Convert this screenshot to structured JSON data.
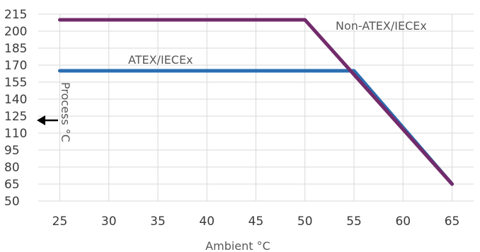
{
  "chart_data": {
    "type": "line",
    "xlabel": "Ambient °C",
    "ylabel": "Process °C",
    "x_ticks": [
      25,
      30,
      35,
      40,
      45,
      50,
      55,
      60,
      65
    ],
    "y_ticks": [
      50,
      65,
      80,
      95,
      110,
      125,
      140,
      155,
      170,
      185,
      200,
      215
    ],
    "xlim": [
      22.8,
      67.2
    ],
    "ylim": [
      50,
      215
    ],
    "grid": "both",
    "legend": "inline labels",
    "series": [
      {
        "name": "Non-ATEX/IECEx",
        "color": "#722b6b",
        "x": [
          25,
          50,
          65
        ],
        "y": [
          210,
          210,
          65
        ]
      },
      {
        "name": "ATEX/IECEx",
        "color": "#2a6eb0",
        "x": [
          25,
          55,
          65
        ],
        "y": [
          165,
          165,
          65
        ]
      }
    ],
    "ylabel_arrow": "left-arrow-icon"
  }
}
